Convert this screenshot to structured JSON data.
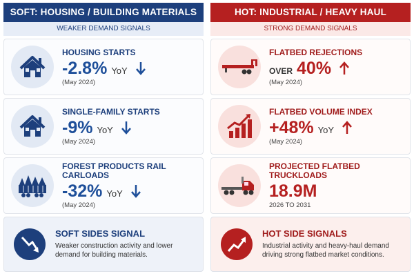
{
  "left": {
    "header": "SOFT: HOUSING / BUILDING MATERIALS",
    "subheader": "WEAKER DEMAND SIGNALS",
    "metrics": [
      {
        "label": "HOUSING STARTS",
        "value": "-2.8%",
        "unit": "YoY",
        "date": "(May 2024)"
      },
      {
        "label": "SINGLE-FAMILY STARTS",
        "value": "-9%",
        "unit": "YoY",
        "date": "(May 2024)"
      },
      {
        "label": "FOREST PRODUCTS RAIL CARLOADS",
        "value": "-32%",
        "unit": "YoY",
        "date": "(May 2024)"
      }
    ],
    "summary": {
      "title": "SOFT SIDES SIGNAL",
      "text": "Weaker construction activity and lower demand for building materials."
    }
  },
  "right": {
    "header": "HOT: INDUSTRIAL / HEAVY HAUL",
    "subheader": "STRONG DEMAND SIGNALS",
    "metrics": [
      {
        "label": "FLATBED REJECTIONS",
        "prefix": "OVER",
        "value": "40%",
        "date": "(May 2024)"
      },
      {
        "label": "FLATBED VOLUME INDEX",
        "value": "+48%",
        "unit": "YoY",
        "date": "(May 2024)"
      },
      {
        "label": "PROJECTED FLATBED TRUCKLOADS",
        "value": "18.9M",
        "date": "2026 TO 2031"
      }
    ],
    "summary": {
      "title": "HOT SIDE SIGNALS",
      "text": "Industrial activity and heavy-haul demand driving strong flatbed market conditions."
    }
  }
}
